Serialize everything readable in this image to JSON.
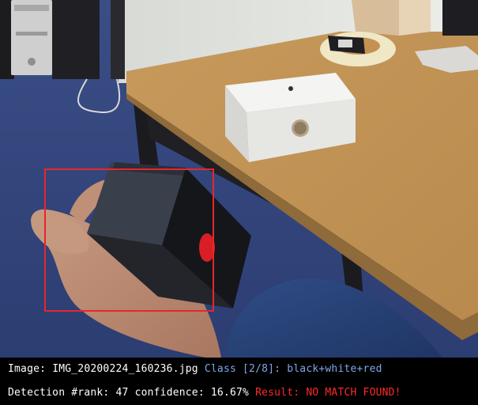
{
  "colors": {
    "box_color": "#e8262b",
    "class_color": "#7fa7e8",
    "result_color": "#ff2a2a",
    "text_color": "#ffffff"
  },
  "info": {
    "image_label": "Image:",
    "image_file": "IMG_20200224_160236.jpg",
    "class_prefix": "Class",
    "class_index": "[2/8]:",
    "class_value": "black+white+red",
    "detection_label": "Detection #rank:",
    "rank": "47",
    "confidence_label": "confidence:",
    "confidence": "16.67%",
    "result_label": "Result:",
    "result_value": "NO MATCH FOUND!"
  },
  "photo": {
    "icon": "photo-scene-icon",
    "subject": "hand holding black cube with red dot"
  }
}
